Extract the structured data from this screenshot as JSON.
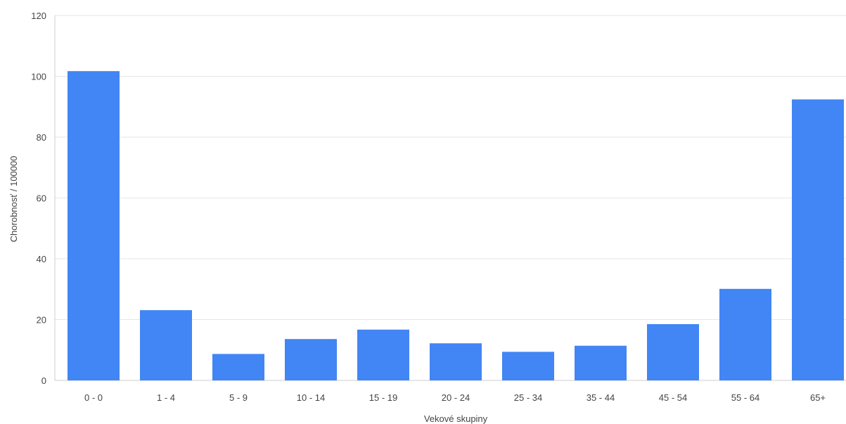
{
  "chart_data": {
    "type": "bar",
    "title": "",
    "xlabel": "Vekové skupiny",
    "ylabel": "Chorobnosť / 100000",
    "ylim": [
      0,
      120
    ],
    "yticks": [
      0,
      20,
      40,
      60,
      80,
      100,
      120
    ],
    "grid": true,
    "bar_color": "#4285F4",
    "categories": [
      "0 - 0",
      "1 - 4",
      "5 - 9",
      "10 - 14",
      "15 - 19",
      "20 - 24",
      "25 - 34",
      "35 - 44",
      "45 - 54",
      "55 - 64",
      "65+"
    ],
    "values": [
      101.7,
      23.1,
      8.7,
      13.6,
      16.7,
      12.2,
      9.4,
      11.4,
      18.5,
      30.1,
      92.4
    ]
  }
}
